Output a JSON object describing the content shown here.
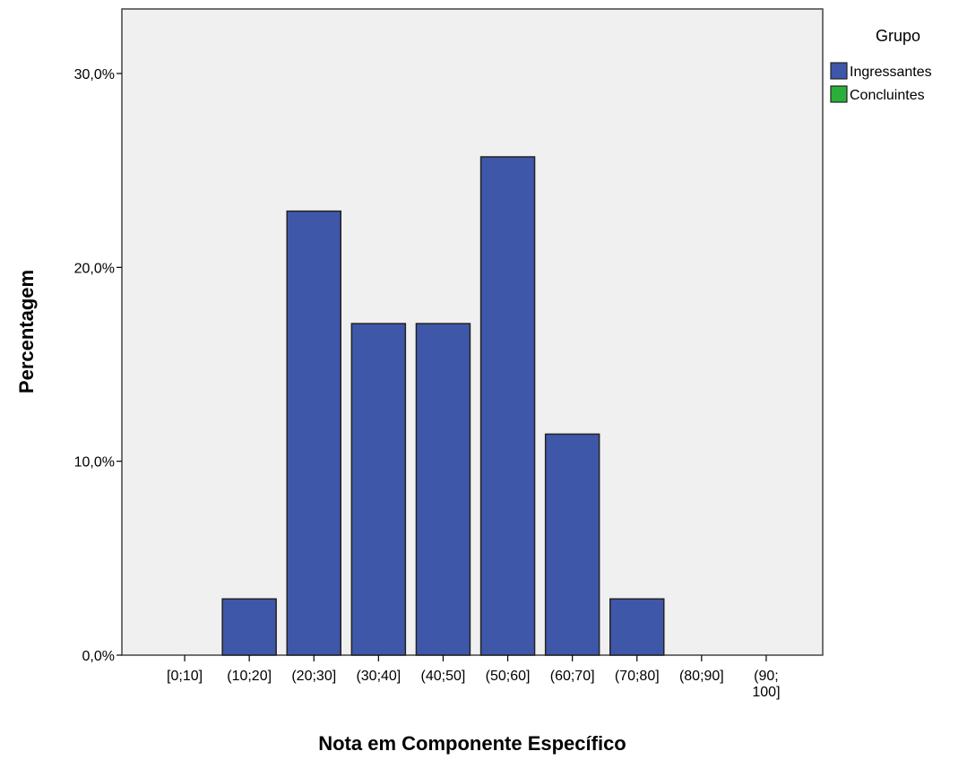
{
  "chart_data": {
    "type": "bar",
    "title": "",
    "xlabel": "Nota em Componente Específico",
    "ylabel": "Percentagem",
    "categories": [
      "[0;10]",
      "(10;20]",
      "(20;30]",
      "(30;40]",
      "(40;50]",
      "(50;60]",
      "(60;70]",
      "(70;80]",
      "(80;90]",
      "(90;\n100]"
    ],
    "series": [
      {
        "name": "Ingressantes",
        "color": "#3f57a9",
        "values": [
          0,
          2.9,
          22.9,
          17.1,
          17.1,
          25.7,
          11.4,
          2.9,
          0,
          0
        ]
      },
      {
        "name": "Concluintes",
        "color": "#2ab03a",
        "values": [
          0,
          0,
          0,
          0,
          0,
          0,
          0,
          0,
          0,
          0
        ]
      }
    ],
    "yticks": [
      "0,0%",
      "10,0%",
      "20,0%",
      "30,0%"
    ],
    "ytick_values": [
      0,
      10,
      20,
      30
    ],
    "ylim": [
      0,
      33
    ],
    "legend": {
      "title": "Grupo",
      "position": "right"
    },
    "grid": false,
    "plot_background": "#f0f0f0"
  }
}
